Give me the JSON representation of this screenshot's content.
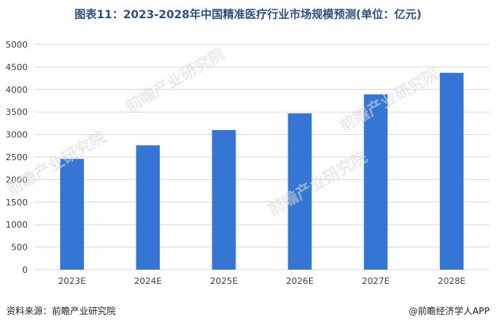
{
  "title": "图表11：2023-2028年中国精准医疗行业市场规模预测(单位：亿元)",
  "source": "资料来源：前瞻产业研究院",
  "brand": "@前瞻经济学人APP",
  "watermark_text": "前瞻产业研究院",
  "colors": {
    "bar": "#3575d3",
    "grid": "#d9d9d9",
    "axis_text": "#404040"
  },
  "chart_data": {
    "type": "bar",
    "categories": [
      "2023E",
      "2024E",
      "2025E",
      "2026E",
      "2027E",
      "2028E"
    ],
    "values": [
      2460,
      2760,
      3100,
      3470,
      3890,
      4370
    ],
    "ylim": [
      0,
      5000
    ],
    "yticks": [
      0,
      500,
      1000,
      1500,
      2000,
      2500,
      3000,
      3500,
      4000,
      4500,
      5000
    ],
    "grid": true,
    "legend": "none"
  }
}
